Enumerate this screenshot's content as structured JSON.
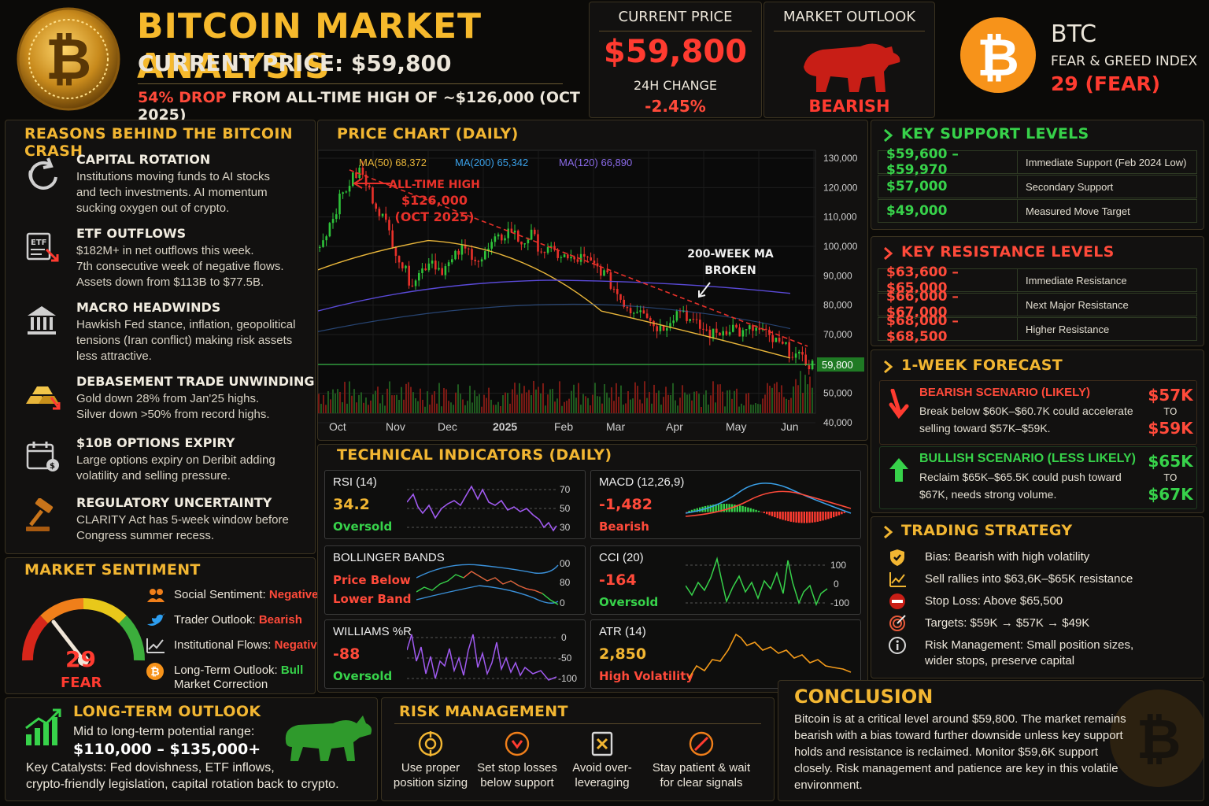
{
  "header": {
    "title": "BITCOIN MARKET ANALYSIS",
    "subtitle": "CURRENT PRICE: $59,800",
    "drop_pct": "54% DROP",
    "drop_rest": "FROM ALL-TIME HIGH OF ~$126,000 (OCT 2025)"
  },
  "current_price": {
    "label": "CURRENT PRICE",
    "value": "$59,800",
    "change_label": "24H CHANGE",
    "change_value": "-2.45%"
  },
  "market_outlook": {
    "label": "MARKET OUTLOOK",
    "value": "BEARISH"
  },
  "fear_greed": {
    "ticker": "BTC",
    "label": "FEAR & GREED INDEX",
    "value": "29 (FEAR)"
  },
  "reasons": {
    "title": "REASONS BEHIND THE BITCOIN CRASH",
    "items": [
      {
        "icon": "rotation-icon",
        "title": "CAPITAL ROTATION",
        "text": [
          "Institutions moving funds to AI stocks",
          "and tech investments. AI momentum",
          "sucking oxygen out of crypto."
        ]
      },
      {
        "icon": "etf-icon",
        "title": "ETF OUTFLOWS",
        "text": [
          "$182M+ in net outflows this week.",
          "7th consecutive week of negative flows.",
          "Assets down from $113B to $77.5B."
        ]
      },
      {
        "icon": "bank-icon",
        "title": "MACRO HEADWINDS",
        "text": [
          "Hawkish Fed stance, inflation, geopolitical",
          "tensions (Iran conflict) making risk assets",
          "less attractive."
        ]
      },
      {
        "icon": "gold-bars-icon",
        "title": "DEBASEMENT TRADE UNWINDING",
        "text": [
          "Gold down 28% from Jan'25 highs.",
          "Silver down >50% from record highs."
        ]
      },
      {
        "icon": "calendar-icon",
        "title": "$10B OPTIONS EXPIRY",
        "text": [
          "Large options expiry on Deribit adding",
          "volatility and selling pressure."
        ]
      },
      {
        "icon": "gavel-icon",
        "title": "REGULATORY UNCERTAINTY",
        "text": [
          "CLARITY Act has 5-week window before",
          "Congress summer recess."
        ]
      }
    ]
  },
  "sentiment": {
    "title": "MARKET SENTIMENT",
    "gauge_value": "29",
    "gauge_label": "FEAR",
    "gauge_level": 0.29,
    "items": [
      {
        "icon": "people-icon",
        "label": "Social Sentiment: ",
        "value": "Negative",
        "value_color": "#ff4a3a"
      },
      {
        "icon": "bird-icon",
        "label": "Trader Outlook: ",
        "value": "Bearish",
        "value_color": "#ff4a3a"
      },
      {
        "icon": "trend-icon",
        "label": "Institutional Flows: ",
        "value": "Negative",
        "value_color": "#ff4a3a"
      },
      {
        "icon": "bitcoin-icon",
        "label": "Long-Term Outlook: ",
        "value": "Bull",
        "value_color": "#37d24a",
        "extra": "Market Correction"
      }
    ]
  },
  "longterm": {
    "title": "LONG-TERM OUTLOOK",
    "line1": "Mid to long-term potential range:",
    "range": "$110,000 – $135,000+",
    "catalysts": [
      "Key Catalysts: Fed dovishness, ETF inflows,",
      "crypto-friendly legislation, capital rotation back to crypto."
    ]
  },
  "risk": {
    "title": "RISK MANAGEMENT",
    "items": [
      {
        "icon": "position-icon",
        "text": [
          "Use proper",
          "position sizing"
        ]
      },
      {
        "icon": "stop-loss-icon",
        "text": [
          "Set stop losses",
          "below support"
        ]
      },
      {
        "icon": "leverage-icon",
        "text": [
          "Avoid over-",
          "leveraging"
        ]
      },
      {
        "icon": "patience-icon",
        "text": [
          "Stay patient & wait",
          "for clear signals"
        ]
      }
    ]
  },
  "conclusion": {
    "title": "CONCLUSION",
    "text": [
      "Bitcoin is at a critical level around $59,800. The market remains",
      "bearish with a bias toward further downside unless key support",
      "holds and resistance is reclaimed. Monitor $59,6K support",
      "closely. Risk management and patience are key in this volatile",
      "environment."
    ]
  },
  "support": {
    "title": "KEY SUPPORT LEVELS",
    "rows": [
      {
        "level": "$59,600 – $59,970",
        "desc": "Immediate Support (Feb 2024 Low)"
      },
      {
        "level": "$57,000",
        "desc": "Secondary Support"
      },
      {
        "level": "$49,000",
        "desc": "Measured Move Target"
      }
    ]
  },
  "resistance": {
    "title": "KEY RESISTANCE LEVELS",
    "rows": [
      {
        "level": "$63,600 – $65,000",
        "desc": "Immediate Resistance"
      },
      {
        "level": "$66,000 – $67,000",
        "desc": "Next Major Resistance"
      },
      {
        "level": "$68,000 – $68,500",
        "desc": "Higher Resistance"
      }
    ]
  },
  "forecast": {
    "title": "1-WEEK FORECAST",
    "bear": {
      "title": "BEARISH SCENARIO (LIKELY)",
      "text": [
        "Break below $60K–$60.7K could accelerate",
        "selling toward $57K–$59K."
      ],
      "from": "$57K",
      "to_word": "TO",
      "to": "$59K"
    },
    "bull": {
      "title": "BULLISH SCENARIO (LESS LIKELY)",
      "text": [
        "Reclaim $65K–$65.5K could push toward",
        "$67K, needs strong volume."
      ],
      "from": "$65K",
      "to_word": "TO",
      "to": "$67K"
    }
  },
  "strategy": {
    "title": "TRADING STRATEGY",
    "items": [
      {
        "icon": "shield-icon",
        "text": [
          "Bias: Bearish with high volatility"
        ]
      },
      {
        "icon": "chart-icon",
        "text": [
          "Sell rallies into $63,6K–$65K resistance"
        ]
      },
      {
        "icon": "stop-icon",
        "text": [
          "Stop Loss: Above $65,500"
        ]
      },
      {
        "icon": "target-icon",
        "text": [
          "Targets: $59K → $57K → $49K"
        ]
      },
      {
        "icon": "info-icon",
        "text": [
          "Risk Management: Small position sizes,",
          "wider stops, preserve capital"
        ]
      }
    ]
  },
  "indicators_title": "TECHNICAL INDICATORS (DAILY)",
  "indicators": {
    "rsi": {
      "name": "RSI (14)",
      "value": "34.2",
      "status": "Oversold",
      "ticks": [
        "70",
        "50",
        "30"
      ]
    },
    "macd": {
      "name": "MACD (12,26,9)",
      "value": "-1,482",
      "status": "Bearish"
    },
    "boll": {
      "name": "BOLLINGER BANDS",
      "status1": "Price Below",
      "status2": "Lower Band",
      "ticks": [
        "00",
        "80",
        "0"
      ]
    },
    "cci": {
      "name": "CCI (20)",
      "value": "-164",
      "status": "Oversold",
      "ticks": [
        "100",
        "0",
        "-100"
      ]
    },
    "williams": {
      "name": "WILLIAMS %R",
      "value": "-88",
      "status": "Oversold",
      "ticks": [
        "0",
        "-50",
        "-100"
      ]
    },
    "atr": {
      "name": "ATR (14)",
      "value": "2,850",
      "status": "High Volatility"
    }
  },
  "chart_data": {
    "type": "line",
    "title": "PRICE CHART (DAILY)",
    "legend": [
      {
        "name": "MA(50) 68,372",
        "color": "#e8b53a"
      },
      {
        "name": "MA(200) 65,342",
        "color": "#3aa0e8"
      },
      {
        "name": "MA(120) 66,890",
        "color": "#8a6ae8"
      }
    ],
    "x_ticks": [
      "Oct",
      "Nov",
      "Dec",
      "2025",
      "Feb",
      "Mar",
      "Apr",
      "May",
      "Jun"
    ],
    "y_ticks": [
      "130,000",
      "120,000",
      "110,000",
      "100,000",
      "90,000",
      "80,000",
      "70,000",
      "50,000",
      "40,000"
    ],
    "ylim": [
      40000,
      130000
    ],
    "current_price_label": "59,800",
    "current_price": 59800,
    "ath_annotation": [
      "ALL-TIME HIGH",
      "$126,000",
      "(OCT 2025)"
    ],
    "ma_annotation": [
      "200-WEEK MA",
      "BROKEN"
    ],
    "close_series": [
      100000,
      108000,
      116000,
      122000,
      126000,
      118000,
      112000,
      104000,
      95000,
      88000,
      91000,
      96000,
      92000,
      94000,
      99000,
      98000,
      95000,
      100000,
      103000,
      106000,
      101000,
      104000,
      99000,
      98000,
      97000,
      95000,
      96000,
      94000,
      92000,
      87000,
      82000,
      78000,
      80000,
      74000,
      72000,
      76000,
      79000,
      74000,
      72000,
      70000,
      71000,
      73000,
      70000,
      72000,
      71000,
      68000,
      66000,
      64000,
      61000,
      59800
    ]
  }
}
